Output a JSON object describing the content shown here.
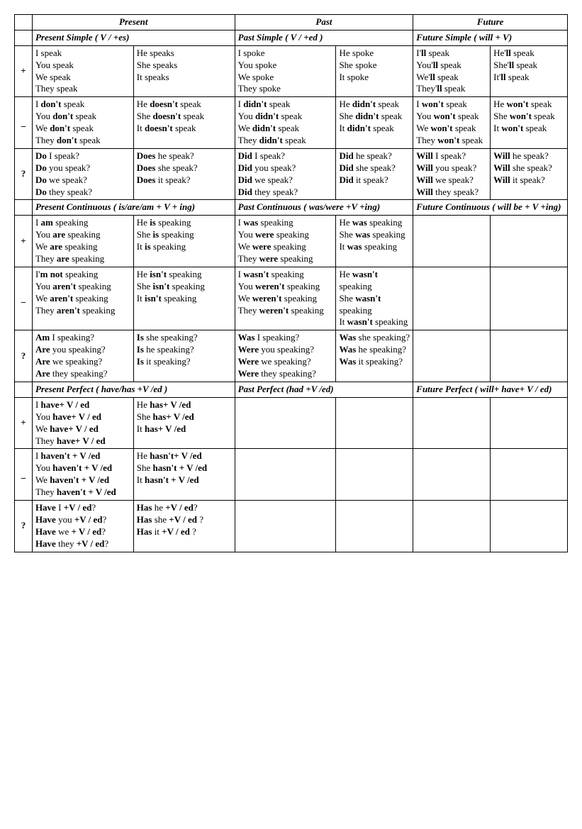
{
  "headers": {
    "present": "Present",
    "past": "Past",
    "future": "Future"
  },
  "sub": {
    "present_simple": "Present Simple   ( V / +es)",
    "past_simple": "Past Simple    ( V / +ed )",
    "future_simple": "Future Simple  ( will + V)",
    "present_cont": "Present Continuous ( is/are/am + V + ing)",
    "past_cont": "Past Continuous ( was/were +V +ing)",
    "future_cont": "Future Continuous ( will be + V +ing)",
    "present_perf": "Present Perfect ( have/has +V /ed )",
    "past_perf": "Past Perfect  (had +V /ed)",
    "future_perf": "Future Perfect ( will+ have+ V / ed)"
  },
  "simple": {
    "pos": {
      "present_a": "I speak\nYou speak\nWe speak\nThey speak",
      "present_b": "He speaks\nShe  speaks\nIt  speaks",
      "past_a": "I spoke\nYou spoke\nWe spoke\nThey spoke",
      "past_b": "He spoke\nShe spoke\nIt spoke",
      "fut_a": "I'<b>ll</b> speak\nYou'<b>ll</b> speak\nWe'<b>ll</b> speak\nThey'<b>ll</b> speak",
      "fut_b": "He'<b>ll</b> speak\nShe'<b>ll</b> speak\nIt'<b>ll</b>  speak"
    },
    "neg": {
      "present_a": "I <b>don't</b> speak\nYou  <b>don't</b> speak\nWe  <b>don't</b> speak\nThey  <b>don't</b> speak",
      "present_b": "He <b>doesn't</b> speak\nShe  <b>doesn't</b> speak\nIt   <b>doesn't</b> speak",
      "past_a": "I <b>didn't</b> speak\nYou  <b>didn't</b> speak\nWe  <b>didn't</b> speak\nThey  <b>didn't</b> speak",
      "past_b": "He  <b>didn't</b> speak\nShe  <b>didn't</b> speak\nIt  <b>didn't</b> speak",
      "fut_a": "I <b>won't</b> speak\nYou  <b>won't</b> speak\nWe <b>won't</b> speak\nThey <b>won't</b> speak",
      "fut_b": "He  <b>won't</b> speak\nShe   <b>won't</b> speak\nIt    <b>won't</b> speak"
    },
    "q": {
      "present_a": "<b>Do</b> I speak?\n<b>Do</b> you speak?\n<b>Do</b> we speak?\n<b>Do</b> they speak?",
      "present_b": "<b>Does</b> he speak?\n<b>Does</b> she speak?\n<b>Does</b> it speak?",
      "past_a": "<b>Did</b> I speak?\n<b>Did</b> you speak?\n<b>Did</b> we speak?\n<b>Did</b> they speak?",
      "past_b": "<b>Did</b> he speak?\n<b>Did</b> she speak?\n<b>Did</b> it speak?",
      "fut_a": "<b>Will</b> I speak?\n<b>Will</b> you speak?\n<b>Will</b> we speak?\n<b>Will</b> they speak?",
      "fut_b": "<b>Will</b> he speak?\n<b>Will</b> she speak?\n<b>Will</b> it speak?"
    }
  },
  "cont": {
    "pos": {
      "present_a": "I <b>am</b> speaking\nYou <b>are</b> speaking\nWe <b>are</b> speaking\nThey <b>are</b> speaking",
      "present_b": "He <b>is</b> speaking\nShe <b>is</b> speaking\nIt <b>is</b> speaking",
      "past_a": "I <b>was</b> speaking\nYou <b>were</b> speaking\nWe <b>were</b> speaking\nThey <b>were</b> speaking",
      "past_b": "He <b>was</b> speaking\nShe <b>was</b> speaking\nIt <b>was</b> speaking",
      "fut_a": "",
      "fut_b": ""
    },
    "neg": {
      "present_a": "I'<b>m not</b> speaking\nYou <b>aren't</b> speaking\nWe <b>aren't</b> speaking\nThey  <b>aren't</b> speaking",
      "present_b": "He <b>isn't</b> speaking\nShe  <b>isn't</b> speaking\nIt  <b>isn't</b>  speaking",
      "past_a": "I <b>wasn't</b> speaking\nYou <b>weren't</b> speaking\nWe  <b>weren't</b> speaking\nThey  <b>weren't</b> speaking",
      "past_b": "He  <b>wasn't</b> speaking\nShe  <b>wasn't</b> speaking\nIt   <b>wasn't</b> speaking",
      "fut_a": "",
      "fut_b": ""
    },
    "q": {
      "present_a": "<b>Am</b> I speaking?\n<b>Are</b> you speaking?\n<b>Are</b> we speaking?\n<b>Are</b> they speaking?",
      "present_b": "<b>Is</b> she speaking?\n<b>Is</b> he speaking?\n<b>Is</b> it speaking?",
      "past_a": "<b>Was</b> I speaking?\n<b>Were</b> you speaking?\n<b>Were</b> we speaking?\n<b>Were</b> they speaking?",
      "past_b": "<b>Was</b> she speaking?\n<b>Was</b> he speaking?\n<b>Was</b> it speaking?",
      "fut_a": "",
      "fut_b": ""
    }
  },
  "perf": {
    "pos": {
      "present_a": "I <b>have+ V / ed</b>\nYou  <b>have+ V / ed</b>\nWe  <b>have+ V / ed</b>\nThey  <b>have+ V / ed</b>",
      "present_b": "He <b>has+ V  /ed</b>\nShe  <b>has+ V  /ed</b>\nIt  <b>has+ V  /ed</b>",
      "past_a": "",
      "past_b": "",
      "fut_a": "",
      "fut_b": ""
    },
    "neg": {
      "present_a": "I <b>haven't + V /ed</b>\nYou  <b>haven't + V /ed</b>\nWe  <b>haven't + V /ed</b>\nThey  <b>haven't + V /ed</b>",
      "present_b": "He <b>hasn't+ V  /ed</b>\nShe  <b>hasn't + V  /ed</b>\nIt  <b>hasn't +  V  /ed</b>",
      "past_a": "",
      "past_b": "",
      "fut_a": "",
      "fut_b": ""
    },
    "q": {
      "present_a": "<b>Have</b> I   <b>+V / ed</b>?\n<b>Have</b> you  <b>+V / ed</b>?\n<b>Have</b> we  <b>+ V / ed</b>?\n<b>Have</b> they  <b>+V / ed</b>?",
      "present_b": "<b>Has</b> he  <b>+V / ed</b>?\n<b>Has</b> she <b>+V / ed</b> ?\n<b>Has</b> it <b>+V / ed</b> ?",
      "past_a": "",
      "past_b": "",
      "fut_a": "",
      "fut_b": ""
    }
  },
  "signs": {
    "plus": "+",
    "minus": "_",
    "q": "?"
  }
}
